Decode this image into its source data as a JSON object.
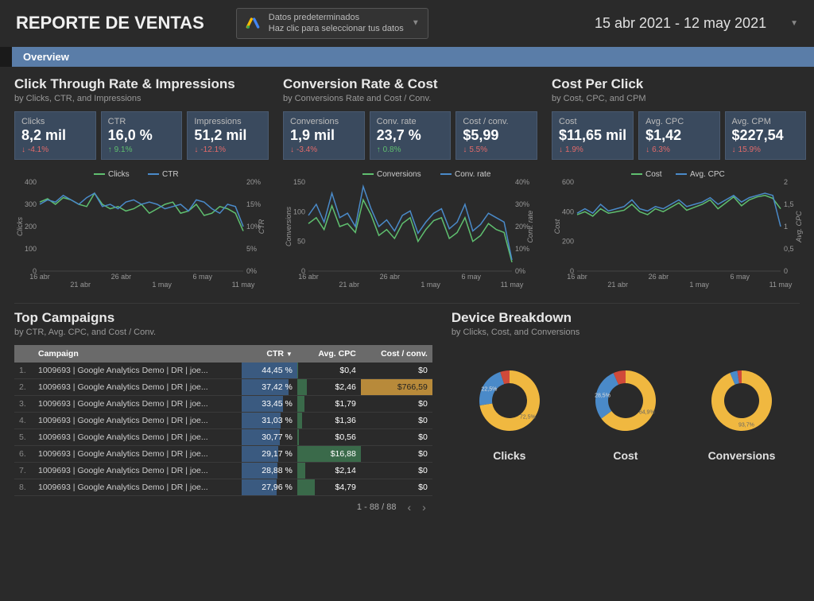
{
  "header": {
    "title": "REPORTE DE VENTAS",
    "data_selector_l1": "Datos predeterminados",
    "data_selector_l2": "Haz clic para seleccionar tus datos",
    "date_range": "15 abr 2021 - 12 may 2021"
  },
  "tab": {
    "label": "Overview"
  },
  "sections": [
    {
      "title": "Click Through Rate & Impressions",
      "sub": "by Clicks, CTR, and Impressions",
      "metrics": [
        {
          "label": "Clicks",
          "value": "8,2 mil",
          "delta": "-4.1%",
          "dir": "down"
        },
        {
          "label": "CTR",
          "value": "16,0 %",
          "delta": "9.1%",
          "dir": "up"
        },
        {
          "label": "Impressions",
          "value": "51,2 mil",
          "delta": "-12.1%",
          "dir": "down"
        }
      ],
      "chart": {
        "legend": [
          {
            "label": "Clicks",
            "color": "#5fbf6f"
          },
          {
            "label": "CTR",
            "color": "#4a8ac9"
          }
        ],
        "yLeft": {
          "label": "Clicks",
          "min": 0,
          "max": 400,
          "ticks": [
            0,
            100,
            200,
            300,
            400
          ]
        },
        "yRight": {
          "label": "CTR",
          "min": 0,
          "max": 20,
          "ticks": [
            "0%",
            "5%",
            "10%",
            "15%",
            "20%"
          ]
        },
        "xTicks": [
          "16 abr",
          "21 abr",
          "26 abr",
          "1 may",
          "6 may",
          "11 may"
        ],
        "seriesA": [
          310,
          325,
          300,
          330,
          320,
          300,
          290,
          350,
          300,
          280,
          290,
          270,
          280,
          300,
          260,
          280,
          300,
          310,
          260,
          270,
          300,
          250,
          260,
          290,
          280,
          260,
          180
        ],
        "seriesB": [
          15,
          16,
          15.5,
          17,
          16,
          15,
          16.5,
          17.5,
          14.5,
          15,
          14,
          15.5,
          16,
          15,
          15.5,
          15,
          14,
          14.5,
          15,
          13.5,
          16,
          15.5,
          14,
          13,
          15,
          14.5,
          10
        ],
        "bMax": 20
      }
    },
    {
      "title": "Conversion Rate & Cost",
      "sub": "by Conversions Rate and Cost / Conv.",
      "metrics": [
        {
          "label": "Conversions",
          "value": "1,9 mil",
          "delta": "-3.4%",
          "dir": "down"
        },
        {
          "label": "Conv. rate",
          "value": "23,7 %",
          "delta": "0.8%",
          "dir": "up"
        },
        {
          "label": "Cost / conv.",
          "value": "$5,99",
          "delta": "5.5%",
          "dir": "down"
        }
      ],
      "chart": {
        "legend": [
          {
            "label": "Conversions",
            "color": "#5fbf6f"
          },
          {
            "label": "Conv. rate",
            "color": "#4a8ac9"
          }
        ],
        "yLeft": {
          "label": "Conversions",
          "min": 0,
          "max": 150,
          "ticks": [
            0,
            50,
            100,
            150
          ]
        },
        "yRight": {
          "label": "Conv. rate",
          "min": 0,
          "max": 40,
          "ticks": [
            "0%",
            "10%",
            "20%",
            "30%",
            "40%"
          ]
        },
        "xTicks": [
          "16 abr",
          "21 abr",
          "26 abr",
          "1 may",
          "6 may",
          "11 may"
        ],
        "seriesA": [
          80,
          90,
          70,
          110,
          75,
          80,
          65,
          120,
          95,
          60,
          70,
          55,
          80,
          90,
          50,
          70,
          85,
          90,
          55,
          65,
          90,
          50,
          60,
          80,
          70,
          65,
          15
        ],
        "seriesB": [
          25,
          30,
          22,
          35,
          24,
          26,
          20,
          38,
          28,
          20,
          23,
          18,
          25,
          27,
          17,
          22,
          26,
          28,
          19,
          22,
          30,
          18,
          21,
          26,
          24,
          22,
          5
        ],
        "bMax": 40
      }
    },
    {
      "title": "Cost Per Click",
      "sub": "by Cost, CPC, and CPM",
      "metrics": [
        {
          "label": "Cost",
          "value": "$11,65 mil",
          "delta": "1.9%",
          "dir": "down"
        },
        {
          "label": "Avg. CPC",
          "value": "$1,42",
          "delta": "6.3%",
          "dir": "down"
        },
        {
          "label": "Avg. CPM",
          "value": "$227,54",
          "delta": "15.9%",
          "dir": "down"
        }
      ],
      "chart": {
        "legend": [
          {
            "label": "Cost",
            "color": "#5fbf6f"
          },
          {
            "label": "Avg. CPC",
            "color": "#4a8ac9"
          }
        ],
        "yLeft": {
          "label": "Cost",
          "min": 0,
          "max": 600,
          "ticks": [
            0,
            200,
            400,
            600
          ]
        },
        "yRight": {
          "label": "Avg. CPC",
          "min": 0,
          "max": 2,
          "ticks": [
            "0",
            "0,5",
            "1",
            "1,5",
            "2"
          ]
        },
        "xTicks": [
          "16 abr",
          "21 abr",
          "26 abr",
          "1 may",
          "6 may",
          "11 may"
        ],
        "seriesA": [
          380,
          400,
          370,
          420,
          390,
          400,
          410,
          450,
          400,
          380,
          420,
          400,
          430,
          460,
          410,
          430,
          450,
          480,
          420,
          460,
          500,
          440,
          480,
          500,
          510,
          490,
          420
        ],
        "seriesB": [
          1.3,
          1.4,
          1.3,
          1.5,
          1.35,
          1.4,
          1.45,
          1.6,
          1.4,
          1.35,
          1.45,
          1.4,
          1.5,
          1.6,
          1.45,
          1.5,
          1.55,
          1.65,
          1.5,
          1.6,
          1.7,
          1.55,
          1.65,
          1.7,
          1.75,
          1.7,
          1.0
        ],
        "bMax": 2
      }
    }
  ],
  "campaigns": {
    "title": "Top Campaigns",
    "sub": "by CTR, Avg. CPC, and Cost / Conv.",
    "columns": [
      "Campaign",
      "CTR",
      "Avg. CPC",
      "Cost / conv."
    ],
    "colors": {
      "ctr_bar": "#3a5a80",
      "cpc_bar": "#3a6a4a",
      "cost_bar": "#b88a3a",
      "cost_max_txt": "#222"
    },
    "rows": [
      {
        "idx": "1.",
        "name": "1009693 | Google Analytics Demo | DR | joe...",
        "ctr": "44,45 %",
        "ctr_pct": 100,
        "cpc": "$0,4",
        "cpc_pct": 2,
        "cost": "$0",
        "cost_pct": 0
      },
      {
        "idx": "2.",
        "name": "1009693 | Google Analytics Demo | DR | joe...",
        "ctr": "37,42 %",
        "ctr_pct": 84,
        "cpc": "$2,46",
        "cpc_pct": 15,
        "cost": "$766,59",
        "cost_pct": 100
      },
      {
        "idx": "3.",
        "name": "1009693 | Google Analytics Demo | DR | joe...",
        "ctr": "33,45 %",
        "ctr_pct": 75,
        "cpc": "$1,79",
        "cpc_pct": 11,
        "cost": "$0",
        "cost_pct": 0
      },
      {
        "idx": "4.",
        "name": "1009693 | Google Analytics Demo | DR | joe...",
        "ctr": "31,03 %",
        "ctr_pct": 70,
        "cpc": "$1,36",
        "cpc_pct": 8,
        "cost": "$0",
        "cost_pct": 0
      },
      {
        "idx": "5.",
        "name": "1009693 | Google Analytics Demo | DR | joe...",
        "ctr": "30,77 %",
        "ctr_pct": 69,
        "cpc": "$0,56",
        "cpc_pct": 3,
        "cost": "$0",
        "cost_pct": 0
      },
      {
        "idx": "6.",
        "name": "1009693 | Google Analytics Demo | DR | joe...",
        "ctr": "29,17 %",
        "ctr_pct": 66,
        "cpc": "$16,88",
        "cpc_pct": 100,
        "cost": "$0",
        "cost_pct": 0
      },
      {
        "idx": "7.",
        "name": "1009693 | Google Analytics Demo | DR | joe...",
        "ctr": "28,88 %",
        "ctr_pct": 65,
        "cpc": "$2,14",
        "cpc_pct": 13,
        "cost": "$0",
        "cost_pct": 0
      },
      {
        "idx": "8.",
        "name": "1009693 | Google Analytics Demo | DR | joe...",
        "ctr": "27,96 %",
        "ctr_pct": 63,
        "cpc": "$4,79",
        "cpc_pct": 28,
        "cost": "$0",
        "cost_pct": 0
      }
    ],
    "pager": "1 - 88 / 88"
  },
  "devices": {
    "title": "Device Breakdown",
    "sub": "by Clicks, Cost, and Conversions",
    "colors": {
      "a": "#f0b840",
      "b": "#4a8ac9",
      "c": "#d04a3a"
    },
    "donuts": [
      {
        "label": "Clicks",
        "a": 72.5,
        "b": 22.5,
        "c": 5.0,
        "txt_a": "72,5%",
        "txt_b": "22,5%"
      },
      {
        "label": "Cost",
        "a": 64.9,
        "b": 28.5,
        "c": 6.6,
        "txt_a": "64,9%",
        "txt_b": "28,5%"
      },
      {
        "label": "Conversions",
        "a": 93.7,
        "b": 4.0,
        "c": 2.3,
        "txt_a": "93,7%"
      }
    ]
  },
  "style": {
    "grid": "#444",
    "axis_text": "#999",
    "axis_text_size": 9
  }
}
